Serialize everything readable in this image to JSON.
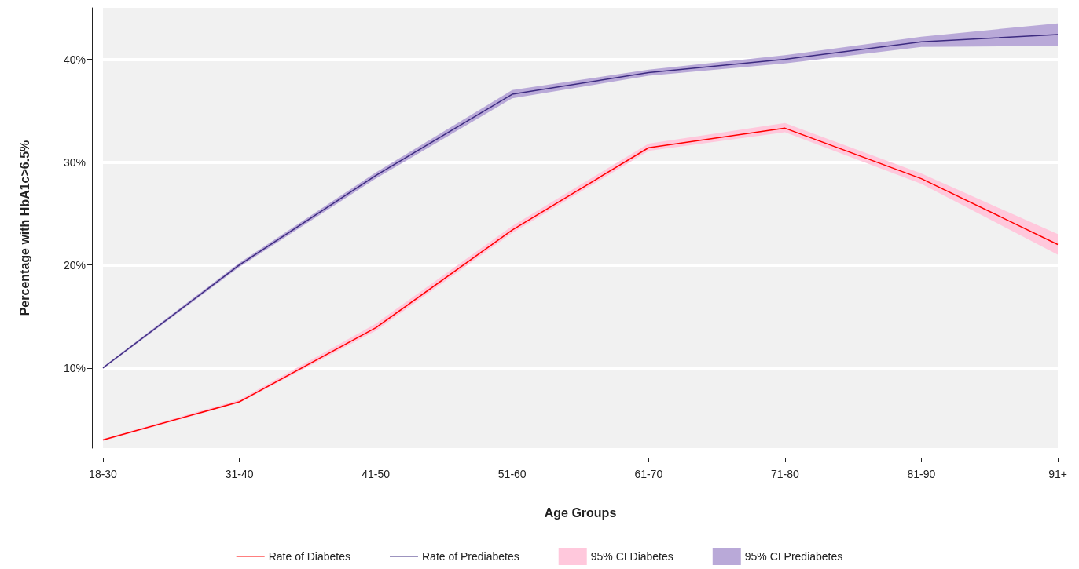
{
  "chart_data": {
    "type": "line",
    "xlabel": "Age Groups",
    "ylabel": "Percentage with HbA1c>6.5%",
    "categories": [
      "18-30",
      "31-40",
      "41-50",
      "51-60",
      "61-70",
      "71-80",
      "81-90",
      "91+"
    ],
    "series": [
      {
        "name": "Rate of Diabetes",
        "color": "#ff0000",
        "values": [
          3.0,
          6.7,
          13.9,
          23.4,
          31.4,
          33.3,
          28.4,
          22.0
        ],
        "lower": [
          2.9,
          6.6,
          13.6,
          23.1,
          31.1,
          32.9,
          27.9,
          21.0
        ],
        "upper": [
          3.1,
          6.9,
          14.3,
          23.8,
          31.8,
          33.8,
          28.9,
          23.0
        ]
      },
      {
        "name": "Rate of Prediabetes",
        "color": "#3d2b80",
        "values": [
          10.0,
          20.0,
          28.7,
          36.6,
          38.7,
          40.0,
          41.7,
          42.4
        ],
        "lower": [
          9.9,
          19.8,
          28.4,
          36.2,
          38.4,
          39.6,
          41.2,
          41.3
        ],
        "upper": [
          10.1,
          20.2,
          29.0,
          37.0,
          39.0,
          40.4,
          42.2,
          43.5
        ]
      },
      {
        "name": "95% CI Diabetes",
        "type": "area",
        "color": "#ffc8dc",
        "values": [
          null,
          null,
          null,
          null,
          null,
          null,
          null,
          null
        ]
      },
      {
        "name": "95% CI Prediabetes",
        "type": "area",
        "color": "#b9a9d8",
        "values": [
          null,
          null,
          null,
          null,
          null,
          null,
          null,
          null
        ]
      }
    ],
    "ylim": [
      2.2,
      45
    ],
    "yticks": [
      {
        "value": 10,
        "label": "10%"
      },
      {
        "value": 20,
        "label": "20%"
      },
      {
        "value": 30,
        "label": "30%"
      },
      {
        "value": 40,
        "label": "40%"
      }
    ],
    "grid": true,
    "legend": "bottom",
    "marker": "none",
    "line_style": "solid"
  }
}
